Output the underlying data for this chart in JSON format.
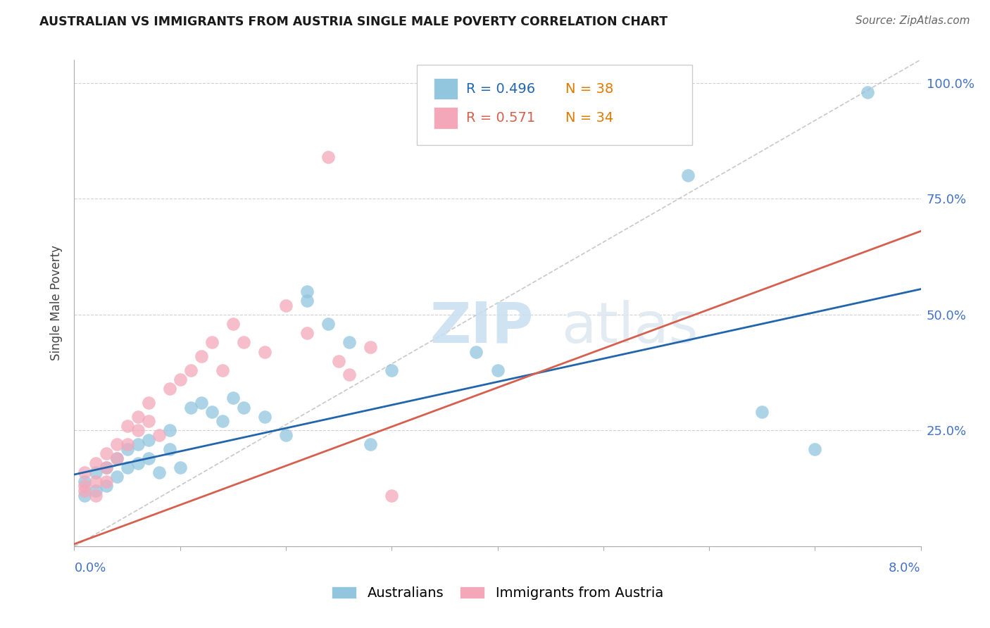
{
  "title": "AUSTRALIAN VS IMMIGRANTS FROM AUSTRIA SINGLE MALE POVERTY CORRELATION CHART",
  "source": "Source: ZipAtlas.com",
  "ylabel": "Single Male Poverty",
  "legend_label1": "Australians",
  "legend_label2": "Immigrants from Austria",
  "R1": "0.496",
  "N1": "38",
  "R2": "0.571",
  "N2": "34",
  "watermark_zip": "ZIP",
  "watermark_atlas": "atlas",
  "color_blue": "#92c5de",
  "color_pink": "#f4a7b9",
  "color_blue_line": "#2166ac",
  "color_pink_line": "#d6604d",
  "color_diag": "#bbbbbb",
  "color_N": "#e07b00",
  "xlim": [
    0.0,
    0.08
  ],
  "ylim": [
    0.0,
    1.05
  ],
  "ytick_vals": [
    0.0,
    0.25,
    0.5,
    0.75,
    1.0
  ],
  "ytick_labels": [
    "",
    "25.0%",
    "50.0%",
    "75.0%",
    "100.0%"
  ],
  "aus_x": [
    0.001,
    0.001,
    0.002,
    0.002,
    0.003,
    0.003,
    0.004,
    0.004,
    0.005,
    0.005,
    0.006,
    0.006,
    0.007,
    0.007,
    0.008,
    0.009,
    0.009,
    0.01,
    0.011,
    0.012,
    0.013,
    0.014,
    0.015,
    0.016,
    0.018,
    0.02,
    0.022,
    0.022,
    0.024,
    0.026,
    0.028,
    0.03,
    0.038,
    0.04,
    0.058,
    0.065,
    0.07,
    0.075
  ],
  "aus_y": [
    0.14,
    0.11,
    0.16,
    0.12,
    0.17,
    0.13,
    0.19,
    0.15,
    0.21,
    0.17,
    0.22,
    0.18,
    0.23,
    0.19,
    0.16,
    0.25,
    0.21,
    0.17,
    0.3,
    0.31,
    0.29,
    0.27,
    0.32,
    0.3,
    0.28,
    0.24,
    0.53,
    0.55,
    0.48,
    0.44,
    0.22,
    0.38,
    0.42,
    0.38,
    0.8,
    0.29,
    0.21,
    0.98
  ],
  "aut_x": [
    0.001,
    0.001,
    0.001,
    0.002,
    0.002,
    0.002,
    0.003,
    0.003,
    0.003,
    0.004,
    0.004,
    0.005,
    0.005,
    0.006,
    0.006,
    0.007,
    0.007,
    0.008,
    0.009,
    0.01,
    0.011,
    0.012,
    0.013,
    0.014,
    0.015,
    0.016,
    0.018,
    0.02,
    0.022,
    0.024,
    0.025,
    0.026,
    0.028,
    0.03
  ],
  "aut_y": [
    0.13,
    0.16,
    0.12,
    0.18,
    0.14,
    0.11,
    0.2,
    0.17,
    0.14,
    0.22,
    0.19,
    0.26,
    0.22,
    0.28,
    0.25,
    0.31,
    0.27,
    0.24,
    0.34,
    0.36,
    0.38,
    0.41,
    0.44,
    0.38,
    0.48,
    0.44,
    0.42,
    0.52,
    0.46,
    0.84,
    0.4,
    0.37,
    0.43,
    0.11
  ]
}
